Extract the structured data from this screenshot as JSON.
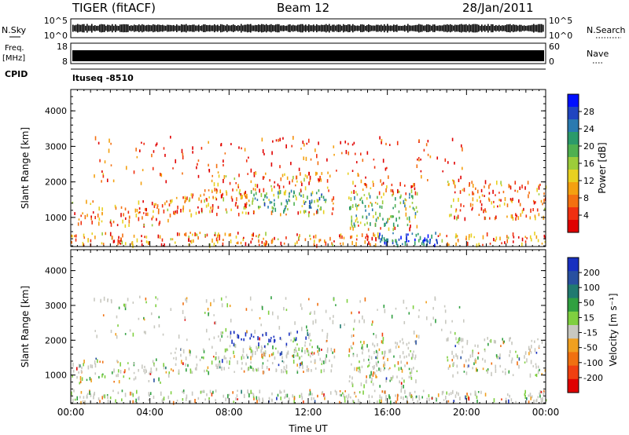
{
  "header": {
    "station": "TIGER (fitACF)",
    "beam": "Beam 12",
    "date": "28/Jan/2011"
  },
  "top_panels": {
    "nsky_label": "N.Sky",
    "nsky_ticks": [
      "10^5",
      "10^0"
    ],
    "nsearch_label": "N.Search",
    "nsearch_ticks": [
      "10^5",
      "10^0"
    ],
    "freq_label": "Freq.",
    "freq_unit": "[MHz]",
    "freq_ticks": [
      "18",
      "8"
    ],
    "nave_label": "Nave",
    "nave_ticks": [
      "60",
      "0"
    ],
    "cpid_label": "CPID",
    "cpid_value": "ltuseq -8510"
  },
  "chart_data": [
    {
      "type": "heatmap",
      "title": "",
      "ylabel": "Slant Range [km]",
      "xlabel": "",
      "ylim": [
        180,
        4600
      ],
      "yticks": [
        "4000",
        "3000",
        "2000",
        "1000"
      ],
      "xticks": [
        "00:00",
        "04:00",
        "08:00",
        "12:00",
        "16:00",
        "20:00",
        "00:00"
      ],
      "colorbar": {
        "label": "Power [dB]",
        "ticks": [
          "28",
          "24",
          "20",
          "16",
          "12",
          "8",
          "4"
        ],
        "colors": [
          "#0010ff",
          "#2045c0",
          "#2a7ab0",
          "#2b9a6a",
          "#4fb050",
          "#9ccc3a",
          "#e8d020",
          "#f4a010",
          "#f47010",
          "#f03010",
          "#e00000"
        ]
      }
    },
    {
      "type": "heatmap",
      "title": "",
      "ylabel": "Slant Range [km]",
      "xlabel": "Time UT",
      "ylim": [
        180,
        4600
      ],
      "yticks": [
        "4000",
        "3000",
        "2000",
        "1000"
      ],
      "xticks": [
        "00:00",
        "04:00",
        "08:00",
        "12:00",
        "16:00",
        "20:00",
        "00:00"
      ],
      "colorbar": {
        "label": "Velocity [m s⁻¹]",
        "ticks": [
          "200",
          "100",
          "50",
          "15",
          "-15",
          "-50",
          "-100",
          "-200"
        ],
        "colors": [
          "#1830c0",
          "#2850a0",
          "#207a70",
          "#30a040",
          "#7fcf40",
          "#c8c8c0",
          "#f0a020",
          "#f07010",
          "#f04010",
          "#e00000"
        ]
      }
    }
  ]
}
